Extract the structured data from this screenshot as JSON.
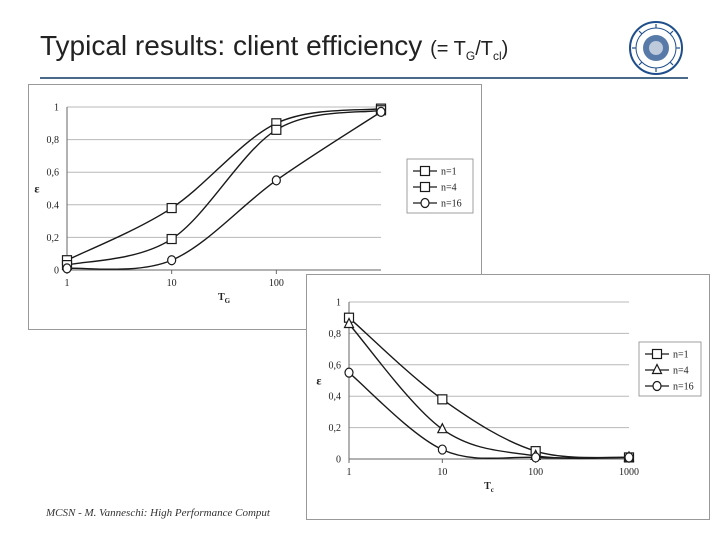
{
  "slide": {
    "title_main": "Typical results: client efficiency",
    "title_paren_open": "(= T",
    "title_sub_g": "G",
    "title_slash": "/T",
    "title_sub_cl": "cl",
    "title_paren_close": ")",
    "footer": "MCSN  -     M. Vanneschi: High Performance Comput"
  },
  "colors": {
    "rule": "#4a6a8a",
    "grid": "#b8b8b8",
    "series": "#1a1a1a",
    "logo": "#1f4e8c"
  },
  "chart_data": [
    {
      "type": "line",
      "xscale": "log",
      "xlim": [
        1,
        1000
      ],
      "ylim": [
        0,
        1
      ],
      "xticks": [
        1,
        10,
        100
      ],
      "xtick_labels": [
        "1",
        "10",
        "100"
      ],
      "yticks": [
        0,
        0.2,
        0.4,
        0.6,
        0.8,
        1
      ],
      "ytick_labels": [
        "0",
        "0,2",
        "0.4",
        "0,6",
        "0,8",
        "1"
      ],
      "xlabel": "T_G",
      "ylabel": "ε",
      "grid": "horizontal",
      "legend_position": "right",
      "series": [
        {
          "name": "n=1",
          "marker": "square",
          "points": [
            [
              1,
              0.06
            ],
            [
              10,
              0.38
            ],
            [
              100,
              0.9
            ],
            [
              1000,
              0.99
            ]
          ]
        },
        {
          "name": "n=4",
          "marker": "square",
          "points": [
            [
              1,
              0.03
            ],
            [
              10,
              0.19
            ],
            [
              100,
              0.86
            ],
            [
              1000,
              0.98
            ]
          ]
        },
        {
          "name": "n=16",
          "marker": "circle",
          "points": [
            [
              1,
              0.01
            ],
            [
              10,
              0.06
            ],
            [
              100,
              0.55
            ],
            [
              1000,
              0.97
            ]
          ]
        }
      ]
    },
    {
      "type": "line",
      "xscale": "log",
      "xlim": [
        1,
        1000
      ],
      "ylim": [
        0,
        1
      ],
      "xticks": [
        1,
        10,
        100,
        1000
      ],
      "xtick_labels": [
        "1",
        "10",
        "100",
        "1000"
      ],
      "yticks": [
        0,
        0.2,
        0.4,
        0.6,
        0.8,
        1
      ],
      "ytick_labels": [
        "0",
        "0,2",
        "0,4",
        "0,6",
        "0,8",
        "1"
      ],
      "xlabel": "T_c",
      "ylabel": "ε",
      "grid": "horizontal",
      "legend_position": "right",
      "series": [
        {
          "name": "n=1",
          "marker": "square",
          "points": [
            [
              1,
              0.9
            ],
            [
              10,
              0.38
            ],
            [
              100,
              0.05
            ],
            [
              1000,
              0.01
            ]
          ]
        },
        {
          "name": "n=4",
          "marker": "triangle",
          "points": [
            [
              1,
              0.86
            ],
            [
              10,
              0.19
            ],
            [
              100,
              0.02
            ],
            [
              1000,
              0.01
            ]
          ]
        },
        {
          "name": "n=16",
          "marker": "circle",
          "points": [
            [
              1,
              0.55
            ],
            [
              10,
              0.06
            ],
            [
              100,
              0.01
            ],
            [
              1000,
              0.01
            ]
          ]
        }
      ]
    }
  ]
}
